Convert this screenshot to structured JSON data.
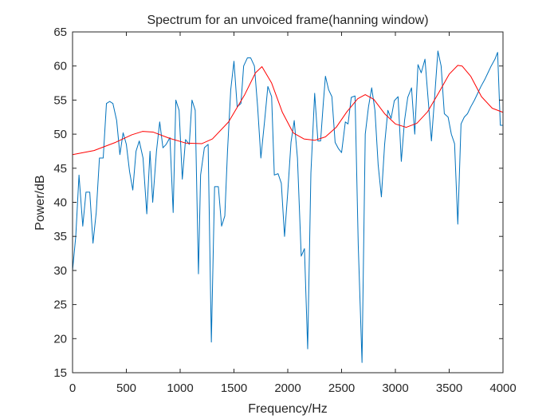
{
  "chart_data": {
    "type": "line",
    "title": "Spectrum for an unvoiced frame(hanning window)",
    "xlabel": "Frequency/Hz",
    "ylabel": "Power/dB",
    "xlim": [
      0,
      4000
    ],
    "ylim": [
      15,
      65
    ],
    "xticks": [
      0,
      500,
      1000,
      1500,
      2000,
      2500,
      3000,
      3500,
      4000
    ],
    "yticks": [
      15,
      20,
      25,
      30,
      35,
      40,
      45,
      50,
      55,
      60,
      65
    ],
    "grid": false,
    "series": [
      {
        "color": "#0072BD",
        "x": [
          0,
          30,
          60,
          95,
          125,
          160,
          190,
          220,
          250,
          285,
          315,
          345,
          375,
          410,
          440,
          470,
          500,
          530,
          560,
          590,
          620,
          655,
          690,
          720,
          745,
          780,
          810,
          840,
          870,
          905,
          935,
          960,
          990,
          1020,
          1050,
          1085,
          1110,
          1140,
          1170,
          1190,
          1225,
          1260,
          1290,
          1320,
          1355,
          1385,
          1415,
          1440,
          1470,
          1500,
          1530,
          1565,
          1590,
          1625,
          1655,
          1690,
          1720,
          1750,
          1785,
          1815,
          1850,
          1875,
          1910,
          1940,
          1970,
          2000,
          2030,
          2060,
          2090,
          2125,
          2155,
          2185,
          2215,
          2250,
          2280,
          2305,
          2330,
          2350,
          2380,
          2410,
          2440,
          2470,
          2500,
          2535,
          2560,
          2590,
          2625,
          2655,
          2690,
          2720,
          2750,
          2780,
          2810,
          2840,
          2870,
          2900,
          2930,
          2960,
          2990,
          3025,
          3055,
          3085,
          3115,
          3150,
          3180,
          3210,
          3240,
          3275,
          3305,
          3335,
          3365,
          3395,
          3425,
          3455,
          3490,
          3520,
          3550,
          3580,
          3610,
          3640,
          3670,
          3700,
          3735,
          3765,
          3795,
          3830,
          3860,
          3890,
          3925,
          3950,
          3975,
          4000
        ],
        "y": [
          30,
          35,
          44,
          36.5,
          41.5,
          41.5,
          34,
          38.5,
          46.5,
          46.5,
          54.5,
          54.8,
          54.5,
          52,
          47,
          50.2,
          48.5,
          44.5,
          41.8,
          47.5,
          49,
          46.5,
          38.3,
          47.5,
          40,
          47.5,
          51.8,
          48,
          48.5,
          49.5,
          38.5,
          55,
          53.5,
          43.4,
          49.2,
          48.5,
          55,
          53.5,
          29.5,
          44,
          48,
          48.5,
          19.5,
          42.3,
          42.3,
          36.5,
          38,
          47.5,
          56.5,
          60.7,
          54,
          54.5,
          60,
          61.2,
          61.2,
          60,
          54,
          46.5,
          52,
          57,
          55.5,
          44,
          44.2,
          42.8,
          35,
          41.5,
          48.8,
          52,
          46.5,
          32.1,
          33.2,
          18.5,
          44.3,
          56,
          49,
          49,
          54.5,
          58.5,
          56.5,
          55.5,
          48.8,
          47.9,
          47.3,
          51.8,
          51.5,
          55.4,
          55.6,
          33.7,
          16.5,
          50,
          54,
          56.8,
          53.5,
          45.5,
          40.8,
          48.5,
          53.5,
          52.3,
          54.9,
          55.5,
          46,
          52,
          55.4,
          56.8,
          50,
          60.2,
          59,
          61,
          55,
          49,
          55.5,
          62.2,
          60,
          53,
          52.5,
          50,
          48.6,
          36.8,
          51.5,
          52.5,
          53,
          54,
          55,
          56,
          57,
          58,
          59,
          60,
          61,
          62,
          51.3,
          51.3
        ]
      },
      {
        "color": "#FF0000",
        "x": [
          0,
          200,
          400,
          550,
          650,
          750,
          900,
          1050,
          1200,
          1300,
          1450,
          1600,
          1700,
          1760,
          1850,
          1950,
          2050,
          2150,
          2250,
          2350,
          2450,
          2550,
          2650,
          2720,
          2800,
          2900,
          3000,
          3100,
          3200,
          3300,
          3400,
          3500,
          3580,
          3620,
          3700,
          3800,
          3900,
          4000
        ],
        "y": [
          47,
          47.6,
          48.8,
          49.9,
          50.4,
          50.3,
          49.4,
          48.7,
          48.6,
          49.3,
          51.8,
          55.8,
          59,
          59.9,
          57.5,
          53.2,
          50.2,
          49.3,
          49.1,
          49.6,
          51,
          53.3,
          55.2,
          55.8,
          55.1,
          53,
          51.5,
          51,
          51.6,
          53.3,
          56,
          58.8,
          60.1,
          60,
          58.5,
          55.5,
          53.8,
          53.2
        ]
      }
    ]
  }
}
